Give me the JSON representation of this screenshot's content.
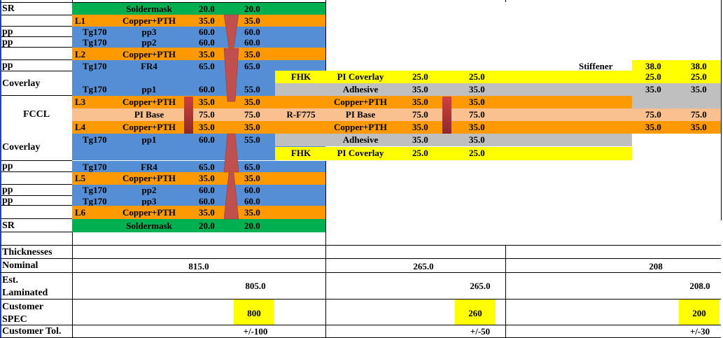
{
  "colors": {
    "soldermask": "#00b050",
    "copper": "#ff9900",
    "prepreg": "#558ed5",
    "pi_base": "#fac090",
    "coverlay": "#ffff00",
    "adhesive": "#bfbfbf",
    "via": "#c0504d"
  },
  "rigid_stack": [
    {
      "side": "SR",
      "layer": "",
      "tg": "",
      "material": "Soldermask",
      "t1": "20.0",
      "t2": "20.0",
      "type": "soldermask"
    },
    {
      "side": "",
      "layer": "L1",
      "tg": "",
      "material": "Copper+PTH",
      "t1": "35.0",
      "t2": "35.0",
      "type": "copper"
    },
    {
      "side": "pp",
      "layer": "",
      "tg": "Tg170",
      "material": "pp3",
      "t1": "60.0",
      "t2": "60.0",
      "type": "prepreg"
    },
    {
      "side": "pp",
      "layer": "",
      "tg": "Tg170",
      "material": "pp2",
      "t1": "60.0",
      "t2": "60.0",
      "type": "prepreg"
    },
    {
      "side": "",
      "layer": "L2",
      "tg": "",
      "material": "Copper+PTH",
      "t1": "35.0",
      "t2": "35.0",
      "type": "copper"
    },
    {
      "side": "pp",
      "layer": "",
      "tg": "Tg170",
      "material": "FR4",
      "t1": "65.0",
      "t2": "65.0",
      "type": "prepreg"
    },
    {
      "side": "Coverlay",
      "layer": "",
      "tg": "Tg170",
      "material": "pp1",
      "t1": "60.0",
      "t2": "55.0",
      "type": "prepreg"
    },
    {
      "side": "",
      "layer": "L3",
      "tg": "",
      "material": "Copper+PTH",
      "t1": "35.0",
      "t2": "35.0",
      "type": "copper"
    },
    {
      "side": "",
      "layer": "",
      "tg": "",
      "material": "PI Base",
      "t1": "75.0",
      "t2": "75.0",
      "type": "pi_base"
    },
    {
      "side": "",
      "layer": "L4",
      "tg": "",
      "material": "Copper+PTH",
      "t1": "35.0",
      "t2": "35.0",
      "type": "copper"
    },
    {
      "side": "Coverlay",
      "layer": "",
      "tg": "Tg170",
      "material": "pp1",
      "t1": "60.0",
      "t2": "55.0",
      "type": "prepreg"
    },
    {
      "side": "pp",
      "layer": "",
      "tg": "Tg170",
      "material": "FR4",
      "t1": "65.0",
      "t2": "65.0",
      "type": "prepreg"
    },
    {
      "side": "",
      "layer": "L5",
      "tg": "",
      "material": "Copper+PTH",
      "t1": "35.0",
      "t2": "35.0",
      "type": "copper"
    },
    {
      "side": "pp",
      "layer": "",
      "tg": "Tg170",
      "material": "pp2",
      "t1": "60.0",
      "t2": "60.0",
      "type": "prepreg"
    },
    {
      "side": "pp",
      "layer": "",
      "tg": "Tg170",
      "material": "pp3",
      "t1": "60.0",
      "t2": "60.0",
      "type": "prepreg"
    },
    {
      "side": "",
      "layer": "L6",
      "tg": "",
      "material": "Copper+PTH",
      "t1": "35.0",
      "t2": "35.0",
      "type": "copper"
    },
    {
      "side": "SR",
      "layer": "",
      "tg": "",
      "material": "Soldermask",
      "t1": "20.0",
      "t2": "20.0",
      "type": "soldermask"
    }
  ],
  "fccl_label": "FCCL",
  "flex_stack": [
    {
      "vendor": "FHK",
      "material": "PI Coverlay",
      "t1": "25.0",
      "t2": "25.0",
      "type": "coverlay"
    },
    {
      "vendor": "",
      "material": "Adhesive",
      "t1": "35.0",
      "t2": "35.0",
      "type": "adhesive"
    },
    {
      "vendor": "",
      "material": "Copper+PTH",
      "t1": "35.0",
      "t2": "35.0",
      "type": "copper"
    },
    {
      "vendor": "R-F775",
      "material": "PI Base",
      "t1": "75.0",
      "t2": "75.0",
      "type": "pi_base"
    },
    {
      "vendor": "",
      "material": "Copper+PTH",
      "t1": "35.0",
      "t2": "35.0",
      "type": "copper"
    },
    {
      "vendor": "",
      "material": "Adhesive",
      "t1": "35.0",
      "t2": "35.0",
      "type": "adhesive"
    },
    {
      "vendor": "FHK",
      "material": "PI Coverlay",
      "t1": "25.0",
      "t2": "25.0",
      "type": "coverlay"
    }
  ],
  "stiffener": {
    "label": "Stiffener",
    "rows": [
      {
        "t1": "38.0",
        "t2": "38.0"
      },
      {
        "t1": "25.0",
        "t2": "25.0"
      },
      {
        "t1": "35.0",
        "t2": "35.0"
      },
      {
        "t1": "",
        "t2": ""
      },
      {
        "t1": "75.0",
        "t2": "75.0"
      },
      {
        "t1": "35.0",
        "t2": "35.0"
      }
    ]
  },
  "summary": {
    "thicknesses_label": "Thicknesses",
    "nominal_label": "Nominal",
    "nominal": [
      "815.0",
      "265.0",
      "208"
    ],
    "est_label": "Est. Laminated",
    "est": [
      "805.0",
      "265.0",
      "208.0"
    ],
    "spec_label": "Customer SPEC",
    "spec": [
      "800",
      "260",
      "200"
    ],
    "tol_label": "Customer Tol.",
    "tol": [
      "+/-100",
      "+/-50",
      "+/-30"
    ]
  }
}
